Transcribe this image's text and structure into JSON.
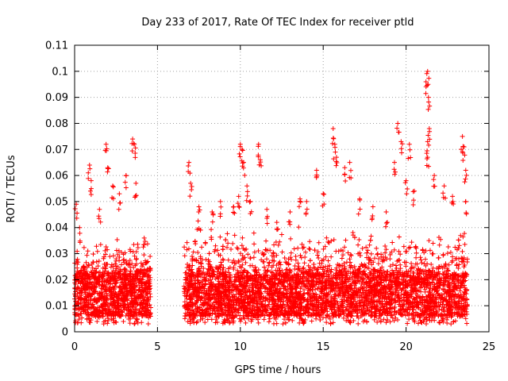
{
  "chart_data": {
    "type": "scatter",
    "title": "Day 233 of 2017, Rate Of TEC Index for receiver ptld",
    "xlabel": "GPS time / hours",
    "ylabel": "ROTI / TECUs",
    "xlim": [
      0,
      25
    ],
    "ylim": [
      0,
      0.11
    ],
    "xticks": [
      0,
      5,
      10,
      15,
      20,
      25
    ],
    "xtick_labels": [
      "0",
      "5",
      "10",
      "15",
      "20",
      "25"
    ],
    "yticks": [
      0,
      0.01,
      0.02,
      0.03,
      0.04,
      0.05,
      0.06,
      0.07,
      0.08,
      0.09,
      0.1,
      0.11
    ],
    "ytick_labels": [
      "0",
      "0.01",
      "0.02",
      "0.03",
      "0.04",
      "0.05",
      "0.06",
      "0.07",
      "0.08",
      "0.09",
      "0.1",
      "0.11"
    ],
    "grid": true,
    "marker": "+",
    "color": "#ff0000",
    "series": [
      {
        "name": "ROTI",
        "note": "dense cloud; data gap between ~4.6 h and ~6.6 h",
        "segments": [
          {
            "x_range": [
              0.0,
              4.6
            ],
            "baseline": [
              0.006,
              0.022
            ],
            "envelope_max": 0.04
          },
          {
            "x_range": [
              6.6,
              23.7
            ],
            "baseline": [
              0.006,
              0.022
            ],
            "envelope_max": 0.045
          }
        ],
        "peaks": [
          [
            0.1,
            0.049
          ],
          [
            0.3,
            0.04
          ],
          [
            0.9,
            0.064
          ],
          [
            1.0,
            0.058
          ],
          [
            1.5,
            0.047
          ],
          [
            1.9,
            0.072
          ],
          [
            2.0,
            0.063
          ],
          [
            2.3,
            0.056
          ],
          [
            2.7,
            0.053
          ],
          [
            3.1,
            0.06
          ],
          [
            3.5,
            0.074
          ],
          [
            3.6,
            0.072
          ],
          [
            3.7,
            0.057
          ],
          [
            4.2,
            0.036
          ],
          [
            6.9,
            0.065
          ],
          [
            7.0,
            0.057
          ],
          [
            7.5,
            0.048
          ],
          [
            8.3,
            0.046
          ],
          [
            8.8,
            0.05
          ],
          [
            9.6,
            0.048
          ],
          [
            9.9,
            0.052
          ],
          [
            10.0,
            0.072
          ],
          [
            10.1,
            0.07
          ],
          [
            10.2,
            0.065
          ],
          [
            10.4,
            0.056
          ],
          [
            10.6,
            0.05
          ],
          [
            11.1,
            0.072
          ],
          [
            11.2,
            0.066
          ],
          [
            11.6,
            0.047
          ],
          [
            12.2,
            0.042
          ],
          [
            13.0,
            0.046
          ],
          [
            13.6,
            0.051
          ],
          [
            14.0,
            0.05
          ],
          [
            14.6,
            0.062
          ],
          [
            15.0,
            0.053
          ],
          [
            15.6,
            0.078
          ],
          [
            15.7,
            0.072
          ],
          [
            15.8,
            0.067
          ],
          [
            16.3,
            0.063
          ],
          [
            16.6,
            0.065
          ],
          [
            17.2,
            0.051
          ],
          [
            18.0,
            0.048
          ],
          [
            18.8,
            0.046
          ],
          [
            19.3,
            0.065
          ],
          [
            19.5,
            0.08
          ],
          [
            19.7,
            0.073
          ],
          [
            20.0,
            0.058
          ],
          [
            20.2,
            0.072
          ],
          [
            20.5,
            0.054
          ],
          [
            21.2,
            0.096
          ],
          [
            21.3,
            0.1
          ],
          [
            21.35,
            0.09
          ],
          [
            21.4,
            0.078
          ],
          [
            21.3,
            0.073
          ],
          [
            21.3,
            0.067
          ],
          [
            21.7,
            0.06
          ],
          [
            22.3,
            0.056
          ],
          [
            22.8,
            0.052
          ],
          [
            23.4,
            0.075
          ],
          [
            23.5,
            0.071
          ],
          [
            23.6,
            0.062
          ],
          [
            23.6,
            0.05
          ]
        ]
      }
    ]
  }
}
